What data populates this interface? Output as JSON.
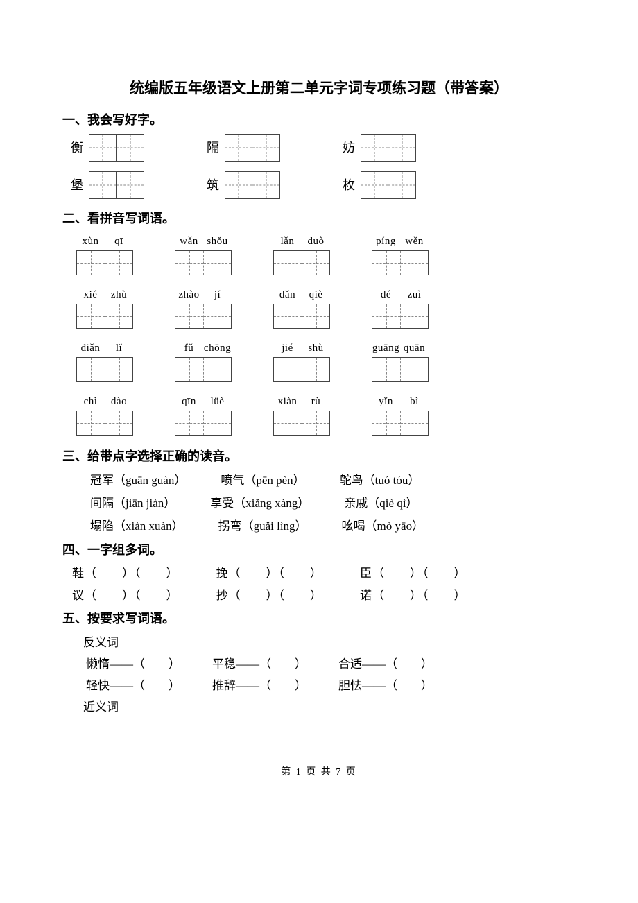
{
  "title": "统编版五年级语文上册第二单元字词专项练习题（带答案）",
  "section1": {
    "heading": "一、我会写好字。",
    "row1": [
      "衡",
      "隔",
      "妨"
    ],
    "row2": [
      "堡",
      "筑",
      "枚"
    ]
  },
  "section2": {
    "heading": "二、看拼音写词语。",
    "rows": [
      [
        [
          "xùn",
          "qī"
        ],
        [
          "wǎn",
          "shǒu"
        ],
        [
          "lǎn",
          "duò"
        ],
        [
          "píng",
          "wěn"
        ]
      ],
      [
        [
          "xié",
          "zhù"
        ],
        [
          "zhào",
          "jí"
        ],
        [
          "dǎn",
          "qiè"
        ],
        [
          "dé",
          "zuì"
        ]
      ],
      [
        [
          "diǎn",
          "lǐ"
        ],
        [
          "fǔ",
          "chōng"
        ],
        [
          "jié",
          "shù"
        ],
        [
          "guāng",
          "quān"
        ]
      ],
      [
        [
          "chì",
          "dào"
        ],
        [
          "qīn",
          "lüè"
        ],
        [
          "xiàn",
          "rù"
        ],
        [
          "yǐn",
          "bì"
        ]
      ]
    ]
  },
  "section3": {
    "heading": "三、给带点字选择正确的读音。",
    "rows": [
      [
        "冠军（guān guàn）",
        "喷气（pēn pèn）",
        "鸵鸟（tuó tóu）"
      ],
      [
        "间隔（jiān jiàn）",
        "享受（xiǎng xàng）",
        "亲戚（qiè  qì）"
      ],
      [
        "塌陷（xiàn  xuàn）",
        "拐弯（guǎi  lìng）",
        "吆喝（mò  yāo）"
      ]
    ]
  },
  "section4": {
    "heading": "四、一字组多词。",
    "rows": [
      [
        "鞋（　　）（　　）",
        "挽（　　）（　　）",
        "臣（　　）（　　）"
      ],
      [
        "议（　　）（　　）",
        "抄（　　）（　　）",
        "诺（　　）（　　）"
      ]
    ]
  },
  "section5": {
    "heading": "五、按要求写词语。",
    "sub1": "反义词",
    "rows1": [
      [
        "懒惰——（　　）",
        "平稳——（　　）",
        "合适——（　　）"
      ],
      [
        "轻快——（　　）",
        "推辞——（　　）",
        "胆怯——（　　）"
      ]
    ],
    "sub2": "近义词"
  },
  "footer": "第 1 页 共 7 页"
}
